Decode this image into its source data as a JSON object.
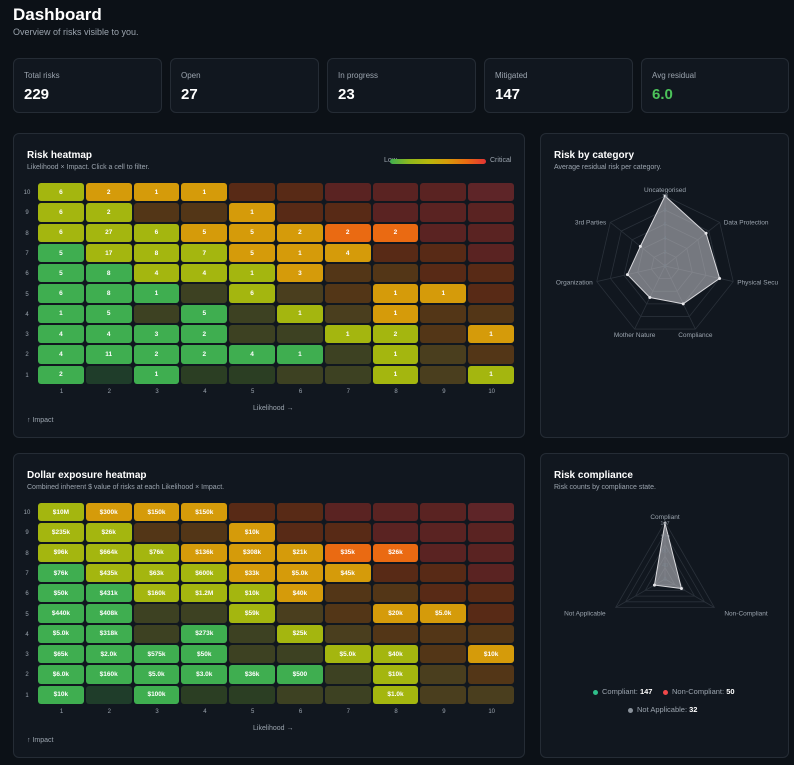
{
  "page": {
    "title": "Dashboard",
    "subtitle": "Overview of risks visible to you."
  },
  "kpis": [
    {
      "label": "Total risks",
      "value": "229",
      "color": "#ffffff"
    },
    {
      "label": "Open",
      "value": "27",
      "color": "#ffffff"
    },
    {
      "label": "In progress",
      "value": "23",
      "color": "#ffffff"
    },
    {
      "label": "Mitigated",
      "value": "147",
      "color": "#ffffff"
    },
    {
      "label": "Avg residual",
      "value": "6.0",
      "color": "#4cc35a"
    }
  ],
  "risk_heatmap": {
    "title": "Risk heatmap",
    "subtitle": "Likelihood × Impact. Click a cell to filter.",
    "legend_low": "Low",
    "legend_high": "Critical",
    "x_title": "Likelihood →",
    "y_title": "↑ Impact",
    "x_ticks": [
      "1",
      "2",
      "3",
      "4",
      "5",
      "6",
      "7",
      "8",
      "9",
      "10"
    ],
    "y_ticks": [
      "10",
      "9",
      "8",
      "7",
      "6",
      "5",
      "4",
      "3",
      "2",
      "1"
    ],
    "rows": [
      [
        "6",
        "2",
        "1",
        "1",
        "",
        "",
        "",
        "",
        "",
        ""
      ],
      [
        "6",
        "2",
        "",
        "",
        "1",
        "",
        "",
        "",
        "",
        ""
      ],
      [
        "6",
        "27",
        "6",
        "5",
        "5",
        "2",
        "2",
        "2",
        "",
        ""
      ],
      [
        "5",
        "17",
        "8",
        "7",
        "5",
        "1",
        "4",
        "",
        "",
        ""
      ],
      [
        "5",
        "8",
        "4",
        "4",
        "1",
        "3",
        "",
        "",
        "",
        ""
      ],
      [
        "6",
        "8",
        "1",
        "",
        "6",
        "",
        "",
        "1",
        "1",
        ""
      ],
      [
        "1",
        "5",
        "",
        "5",
        "",
        "1",
        "",
        "1",
        "",
        ""
      ],
      [
        "4",
        "4",
        "3",
        "2",
        "",
        "",
        "1",
        "2",
        "",
        "1"
      ],
      [
        "4",
        "11",
        "2",
        "2",
        "4",
        "1",
        "",
        "1",
        "",
        ""
      ],
      [
        "2",
        "",
        "1",
        "",
        "",
        "",
        "",
        "1",
        "",
        "1"
      ]
    ]
  },
  "dollar_heatmap": {
    "title": "Dollar exposure heatmap",
    "subtitle": "Combined inherent $ value of risks at each Likelihood × Impact.",
    "x_title": "Likelihood →",
    "y_title": "↑ Impact",
    "x_ticks": [
      "1",
      "2",
      "3",
      "4",
      "5",
      "6",
      "7",
      "8",
      "9",
      "10"
    ],
    "y_ticks": [
      "10",
      "9",
      "8",
      "7",
      "6",
      "5",
      "4",
      "3",
      "2",
      "1"
    ],
    "rows": [
      [
        "$10M",
        "$300k",
        "$150k",
        "$150k",
        "",
        "",
        "",
        "",
        "",
        ""
      ],
      [
        "$235k",
        "$26k",
        "",
        "",
        "$10k",
        "",
        "",
        "",
        "",
        ""
      ],
      [
        "$96k",
        "$664k",
        "$76k",
        "$136k",
        "$308k",
        "$21k",
        "$35k",
        "$26k",
        "",
        ""
      ],
      [
        "$76k",
        "$435k",
        "$63k",
        "$600k",
        "$33k",
        "$5.0k",
        "$45k",
        "",
        "",
        ""
      ],
      [
        "$50k",
        "$431k",
        "$160k",
        "$1.2M",
        "$10k",
        "$40k",
        "",
        "",
        "",
        ""
      ],
      [
        "$440k",
        "$408k",
        "",
        "",
        "$59k",
        "",
        "",
        "$20k",
        "$5.0k",
        ""
      ],
      [
        "$5.0k",
        "$318k",
        "",
        "$273k",
        "",
        "$25k",
        "",
        "",
        "",
        ""
      ],
      [
        "$65k",
        "$2.0k",
        "$575k",
        "$50k",
        "",
        "",
        "$5.0k",
        "$40k",
        "",
        "$10k"
      ],
      [
        "$6.0k",
        "$160k",
        "$5.0k",
        "$3.0k",
        "$36k",
        "$500",
        "",
        "$10k",
        "",
        ""
      ],
      [
        "$10k",
        "",
        "$100k",
        "",
        "",
        "",
        "",
        "$1.0k",
        "",
        ""
      ]
    ]
  },
  "risk_by_category": {
    "title": "Risk by category",
    "subtitle": "Average residual risk per category.",
    "chart_data": {
      "type": "radar",
      "categories": [
        "Uncategorised",
        "Data Protection",
        "Physical Secu",
        "Compliance",
        "Mother Nature",
        "Organization",
        "3rd Parties"
      ],
      "values": [
        10,
        7.5,
        8,
        6,
        5,
        5.5,
        4.5
      ],
      "rmax": 10,
      "ticks": [
        "0",
        "2",
        "4",
        "6",
        "8",
        "10"
      ]
    }
  },
  "risk_compliance": {
    "title": "Risk compliance",
    "subtitle": "Risk counts by compliance state.",
    "chart_data": {
      "type": "radar",
      "categories": [
        "Compliant",
        "Non-Compliant",
        "Not Applicable"
      ],
      "values": [
        147,
        50,
        32
      ],
      "rmax": 150,
      "ticks": [
        "0",
        "40",
        "80",
        "120",
        "147"
      ]
    },
    "legend": [
      {
        "label": "Compliant",
        "value": "147",
        "color": "#2fbf8a"
      },
      {
        "label": "Non-Compliant",
        "value": "50",
        "color": "#f0484a"
      },
      {
        "label": "Not Applicable",
        "value": "32",
        "color": "#8a929b"
      }
    ]
  },
  "colors": {
    "r1": "#3fae50",
    "r2": "#8fb81d",
    "r3": "#b7b80c",
    "r4": "#d79a0a",
    "r5": "#ea6a12",
    "r6": "#e23434"
  }
}
